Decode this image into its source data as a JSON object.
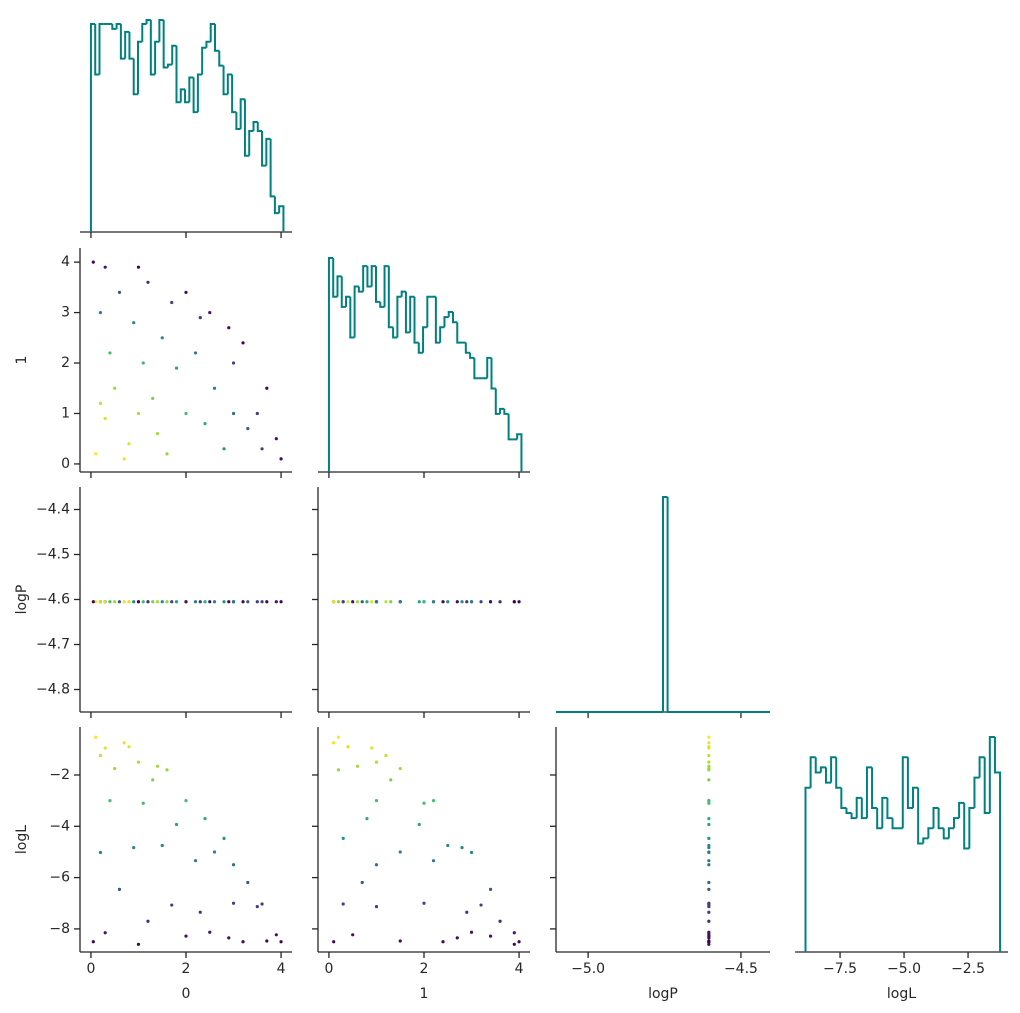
{
  "chart_data": {
    "type": "corner",
    "colormap": "viridis",
    "hist_color": "#008080",
    "variables": [
      {
        "name": "0",
        "samples": [
          0.1,
          0.3,
          3.9,
          1.0,
          2.0,
          1.5,
          3.0,
          2.5,
          0.5,
          3.5,
          0.2,
          1.2,
          2.8,
          0.8,
          3.2,
          1.8,
          0.4,
          2.2,
          3.7,
          1.4,
          0.6,
          2.6,
          4.0,
          0.05,
          1.1,
          2.4,
          3.3,
          0.9,
          1.7,
          0.3,
          2.0,
          3.0,
          1.3,
          0.7,
          3.6,
          1.0,
          2.9,
          0.2,
          1.6,
          2.3
        ],
        "xlim": [
          -0.23,
          4.23
        ],
        "xticks": [
          0,
          2,
          4
        ],
        "hist": {
          "bins": [
            0,
            0.09,
            0.18,
            0.27,
            0.36,
            0.45,
            0.54,
            0.63,
            0.72,
            0.81,
            0.9,
            0.99,
            1.08,
            1.17,
            1.26,
            1.35,
            1.44,
            1.53,
            1.62,
            1.71,
            1.8,
            1.89,
            1.98,
            2.07,
            2.16,
            2.25,
            2.34,
            2.43,
            2.52,
            2.61,
            2.7,
            2.79,
            2.88,
            2.97,
            3.06,
            3.15,
            3.24,
            3.33,
            3.42,
            3.51,
            3.6,
            3.69,
            3.78,
            3.87,
            3.96,
            4.05
          ],
          "counts": [
            210,
            159,
            210,
            210,
            210,
            205,
            210,
            175,
            202,
            175,
            139,
            192,
            210,
            214,
            159,
            192,
            214,
            166,
            169,
            188,
            131,
            144,
            131,
            156,
            121,
            159,
            186,
            192,
            210,
            183,
            168,
            139,
            159,
            121,
            104,
            134,
            77,
            102,
            111,
            102,
            67,
            94,
            36,
            19,
            26
          ]
        }
      },
      {
        "name": "1",
        "samples": [
          0.2,
          3.9,
          0.5,
          1.0,
          1.0,
          2.5,
          2.0,
          3.0,
          1.5,
          1.0,
          3.0,
          3.6,
          0.3,
          0.4,
          2.4,
          1.9,
          2.2,
          2.2,
          1.5,
          0.6,
          3.4,
          1.5,
          0.1,
          4.0,
          2.0,
          0.8,
          0.7,
          2.8,
          3.2,
          0.9,
          3.4,
          1.0,
          1.3,
          0.1,
          0.3,
          3.9,
          2.7,
          1.2,
          0.2,
          2.9
        ],
        "xlim": [
          -0.23,
          4.23
        ],
        "xticks": [
          0,
          2,
          4
        ],
        "ylim": [
          -0.16,
          4.28
        ],
        "yticks": [
          0,
          1,
          2,
          3,
          4
        ],
        "hist": {
          "bins": [
            0,
            0.09,
            0.18,
            0.27,
            0.36,
            0.45,
            0.54,
            0.63,
            0.72,
            0.81,
            0.9,
            0.99,
            1.08,
            1.17,
            1.26,
            1.35,
            1.44,
            1.53,
            1.62,
            1.71,
            1.8,
            1.89,
            1.98,
            2.07,
            2.16,
            2.25,
            2.34,
            2.43,
            2.52,
            2.61,
            2.7,
            2.79,
            2.88,
            2.97,
            3.06,
            3.15,
            3.24,
            3.33,
            3.42,
            3.51,
            3.6,
            3.69,
            3.78,
            3.87,
            3.96,
            4.05
          ],
          "counts": [
            210,
            172,
            192,
            162,
            172,
            132,
            182,
            177,
            202,
            182,
            202,
            167,
            162,
            202,
            142,
            132,
            172,
            177,
            137,
            172,
            127,
            117,
            142,
            172,
            172,
            127,
            142,
            152,
            157,
            147,
            127,
            127,
            117,
            112,
            92,
            92,
            92,
            112,
            82,
            57,
            62,
            57,
            32,
            32,
            37
          ]
        }
      },
      {
        "name": "logP",
        "samples": [
          -4.605,
          -4.605,
          -4.605,
          -4.605,
          -4.605,
          -4.605,
          -4.605,
          -4.605,
          -4.605,
          -4.605,
          -4.605,
          -4.605,
          -4.605,
          -4.605,
          -4.605,
          -4.605,
          -4.605,
          -4.605,
          -4.605,
          -4.605,
          -4.605,
          -4.605,
          -4.605,
          -4.605,
          -4.605,
          -4.605,
          -4.605,
          -4.605,
          -4.605,
          -4.605,
          -4.605,
          -4.605,
          -4.605,
          -4.605,
          -4.605,
          -4.605,
          -4.605,
          -4.605,
          -4.605,
          -4.605
        ],
        "xlim": [
          -5.105,
          -4.405
        ],
        "xticks": [
          {
            "value": -5.0,
            "label": "−5.0"
          },
          {
            "value": -4.5,
            "label": "−4.5"
          }
        ],
        "ylim": [
          -4.85,
          -4.35
        ],
        "yticks": [
          {
            "value": -4.4,
            "label": "−4.4"
          },
          {
            "value": -4.5,
            "label": "−4.5"
          },
          {
            "value": -4.6,
            "label": "−4.6"
          },
          {
            "value": -4.7,
            "label": "−4.7"
          },
          {
            "value": -4.8,
            "label": "−4.8"
          }
        ],
        "hist": {
          "bins": [
            -5.105,
            -4.755,
            -4.74,
            -4.405
          ],
          "counts": [
            0,
            213,
            0
          ]
        }
      },
      {
        "name": "logL",
        "samples": [
          -0.53,
          -8.15,
          -8.23,
          -1.5,
          -3.0,
          -4.75,
          -7.0,
          -8.13,
          -1.75,
          -7.13,
          -5.02,
          -7.7,
          -4.47,
          -0.9,
          -8.5,
          -3.93,
          -3.0,
          -5.34,
          -8.47,
          -1.66,
          -6.46,
          -5.0,
          -8.5,
          -8.5,
          -3.1,
          -3.7,
          -6.19,
          -4.83,
          -7.07,
          -0.95,
          -8.28,
          -5.5,
          -2.19,
          -0.75,
          -7.03,
          -8.6,
          -8.35,
          -1.24,
          -1.8,
          -7.35
        ],
        "xlim": [
          -9.26,
          -0.94
        ],
        "xticks": [
          {
            "value": -7.5,
            "label": "−7.5"
          },
          {
            "value": -5.0,
            "label": "−5.0"
          },
          {
            "value": -2.5,
            "label": "−2.5"
          }
        ],
        "ylim": [
          -8.9,
          -0.13
        ],
        "yticks": [
          {
            "value": -2,
            "label": "−2"
          },
          {
            "value": -4,
            "label": "−4"
          },
          {
            "value": -6,
            "label": "−6"
          },
          {
            "value": -8,
            "label": "−8"
          }
        ],
        "hist": {
          "bins": [
            -8.85,
            -8.65,
            -8.45,
            -8.25,
            -8.05,
            -7.85,
            -7.65,
            -7.45,
            -7.25,
            -7.05,
            -6.85,
            -6.65,
            -6.45,
            -6.25,
            -6.05,
            -5.85,
            -5.65,
            -5.45,
            -5.25,
            -5.05,
            -4.85,
            -4.65,
            -4.45,
            -4.25,
            -4.05,
            -3.85,
            -3.65,
            -3.45,
            -3.25,
            -3.05,
            -2.85,
            -2.65,
            -2.45,
            -2.25,
            -2.05,
            -1.85,
            -1.65,
            -1.45,
            -1.25
          ],
          "counts": [
            162,
            192,
            177,
            182,
            167,
            192,
            162,
            142,
            137,
            132,
            152,
            132,
            182,
            142,
            122,
            152,
            132,
            122,
            122,
            192,
            142,
            162,
            107,
            112,
            122,
            142,
            122,
            112,
            122,
            132,
            147,
            102,
            142,
            172,
            192,
            137,
            212,
            177
          ]
        }
      }
    ]
  }
}
